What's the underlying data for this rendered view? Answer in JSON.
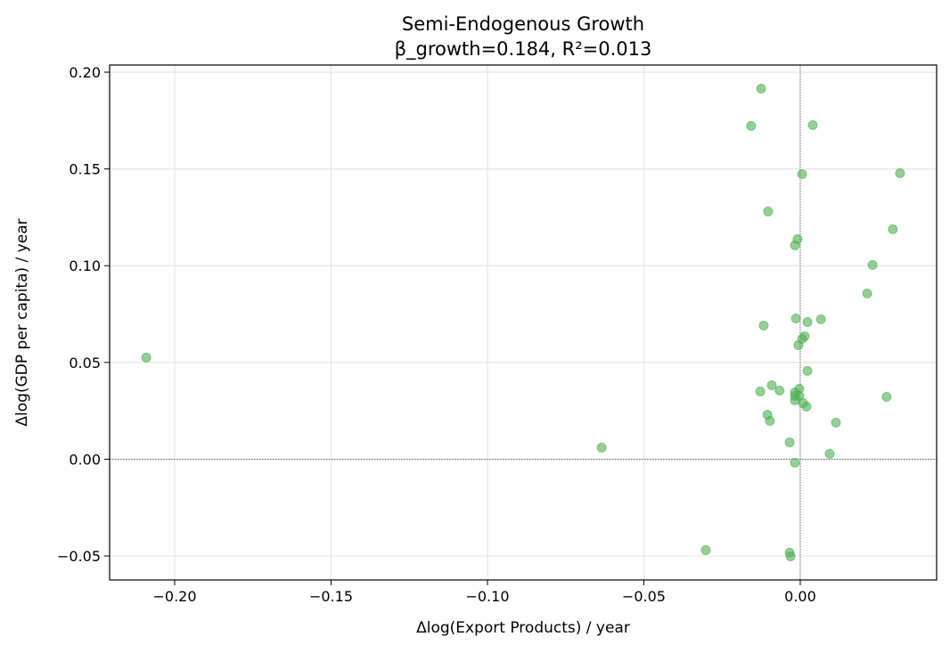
{
  "chart_data": {
    "type": "scatter",
    "title": "Semi-Endogenous Growth",
    "subtitle": "β_growth=0.184, R²=0.013",
    "xlabel": "Δlog(Export Products) / year",
    "ylabel": "Δlog(GDP per capita) / year",
    "xlim": [
      -0.2208,
      0.0436
    ],
    "ylim": [
      -0.0624,
      0.2037
    ],
    "xticks": [
      -0.2,
      -0.15,
      -0.1,
      -0.05,
      0.0
    ],
    "xtick_labels": [
      "−0.20",
      "−0.15",
      "−0.10",
      "−0.05",
      "0.00"
    ],
    "yticks": [
      -0.05,
      0.0,
      0.05,
      0.1,
      0.15,
      0.2
    ],
    "ytick_labels": [
      "−0.05",
      "0.00",
      "0.05",
      "0.10",
      "0.15",
      "0.20"
    ],
    "grid": true,
    "reference_lines": {
      "x": 0,
      "y": 0
    },
    "marker_color": "#4caf50",
    "points": [
      [
        -0.0125,
        0.1915
      ],
      [
        -0.0157,
        0.1722
      ],
      [
        0.004,
        0.1727
      ],
      [
        0.0006,
        0.1473
      ],
      [
        0.0319,
        0.1478
      ],
      [
        -0.0103,
        0.128
      ],
      [
        -0.0009,
        0.1137
      ],
      [
        -0.0017,
        0.1105
      ],
      [
        0.0296,
        0.1188
      ],
      [
        0.0231,
        0.1004
      ],
      [
        0.0214,
        0.0856
      ],
      [
        -0.0014,
        0.0727
      ],
      [
        0.0066,
        0.0723
      ],
      [
        0.0023,
        0.0709
      ],
      [
        -0.0117,
        0.0691
      ],
      [
        0.0014,
        0.0635
      ],
      [
        0.0006,
        0.0622
      ],
      [
        -0.0006,
        0.0589
      ],
      [
        -0.2091,
        0.0525
      ],
      [
        0.0023,
        0.0456
      ],
      [
        -0.0091,
        0.0382
      ],
      [
        -0.0128,
        0.035
      ],
      [
        -0.0066,
        0.0355
      ],
      [
        -0.0003,
        0.0364
      ],
      [
        -0.0017,
        0.0345
      ],
      [
        -0.0017,
        0.0327
      ],
      [
        -0.0003,
        0.0327
      ],
      [
        -0.0017,
        0.0304
      ],
      [
        0.0276,
        0.0322
      ],
      [
        0.0009,
        0.029
      ],
      [
        0.002,
        0.0272
      ],
      [
        -0.0105,
        0.023
      ],
      [
        -0.0097,
        0.0198
      ],
      [
        0.0114,
        0.0189
      ],
      [
        -0.0034,
        0.0087
      ],
      [
        -0.0635,
        0.006
      ],
      [
        0.0094,
        0.0028
      ],
      [
        -0.0017,
        -0.0018
      ],
      [
        -0.0302,
        -0.047
      ],
      [
        -0.0034,
        -0.0483
      ],
      [
        -0.0031,
        -0.0502
      ]
    ]
  }
}
